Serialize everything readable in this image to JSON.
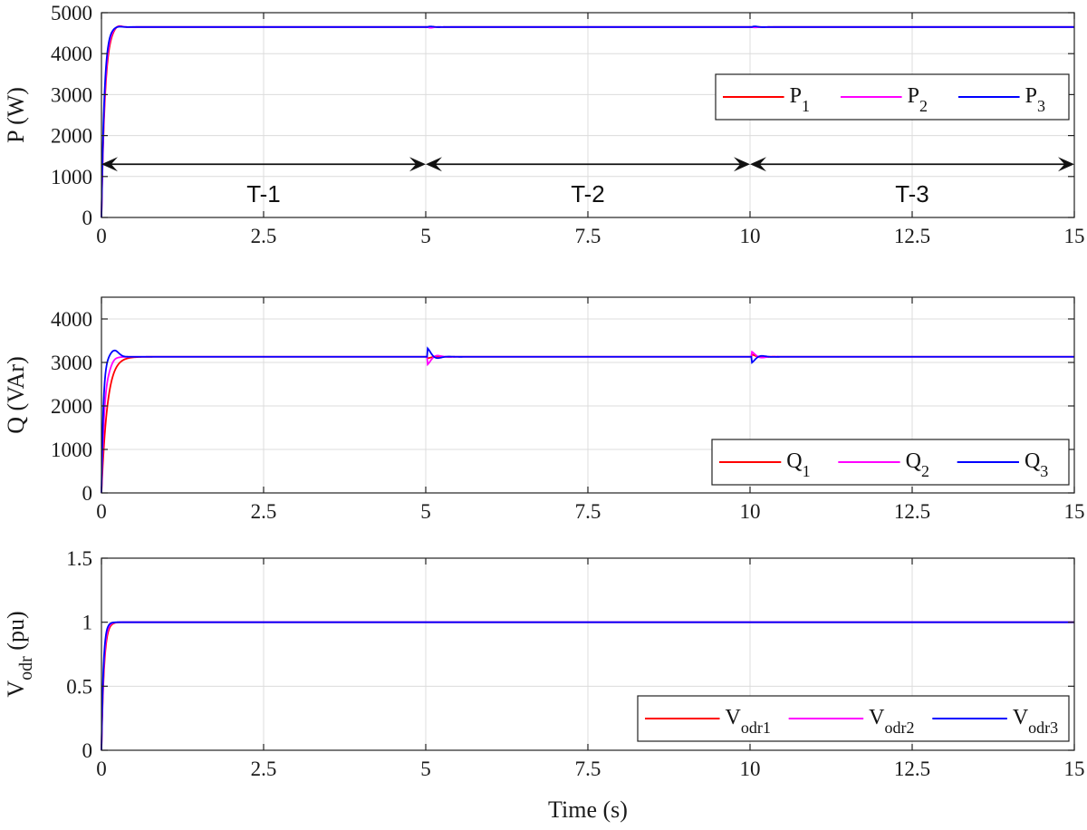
{
  "chart_data": [
    {
      "type": "line",
      "ylabel": "P (W)",
      "ylim": [
        0,
        5000
      ],
      "yticks": [
        "0",
        "1000",
        "2000",
        "3000",
        "4000",
        "5000"
      ],
      "xlim": [
        0,
        15
      ],
      "xticks": [
        "0",
        "2.5",
        "5",
        "7.5",
        "10",
        "12.5",
        "15"
      ],
      "grid": true,
      "legend_position": "top-right",
      "series": [
        {
          "name": "P",
          "sub": "1",
          "color": "#ff0000",
          "steady": 4650
        },
        {
          "name": "P",
          "sub": "2",
          "color": "#ff00ff",
          "steady": 4650
        },
        {
          "name": "P",
          "sub": "3",
          "color": "#0000ff",
          "steady": 4650
        }
      ],
      "annotations": [
        {
          "label": "T-1",
          "from": 0,
          "to": 5,
          "y": 1300
        },
        {
          "label": "T-2",
          "from": 5,
          "to": 10,
          "y": 1300
        },
        {
          "label": "T-3",
          "from": 10,
          "to": 15,
          "y": 1300
        }
      ]
    },
    {
      "type": "line",
      "ylabel": "Q (VAr)",
      "ylim": [
        0,
        4500
      ],
      "yticks": [
        "0",
        "1000",
        "2000",
        "3000",
        "4000"
      ],
      "xlim": [
        0,
        15
      ],
      "xticks": [
        "0",
        "2.5",
        "5",
        "7.5",
        "10",
        "12.5",
        "15"
      ],
      "grid": true,
      "legend_position": "bottom-right",
      "series": [
        {
          "name": "Q",
          "sub": "1",
          "color": "#ff0000",
          "steady": 3130
        },
        {
          "name": "Q",
          "sub": "2",
          "color": "#ff00ff",
          "steady": 3130
        },
        {
          "name": "Q",
          "sub": "3",
          "color": "#0000ff",
          "steady": 3130
        }
      ]
    },
    {
      "type": "line",
      "ylabel": "V",
      "ylabel_sub": "odr",
      "ylabel_unit": "(pu)",
      "ylim": [
        0,
        1.5
      ],
      "yticks": [
        "0",
        "0.5",
        "1",
        "1.5"
      ],
      "xlim": [
        0,
        15
      ],
      "xticks": [
        "0",
        "2.5",
        "5",
        "7.5",
        "10",
        "12.5",
        "15"
      ],
      "xlabel": "Time (s)",
      "grid": true,
      "legend_position": "bottom-right",
      "series": [
        {
          "name": "V",
          "sub": "odr1",
          "color": "#ff0000",
          "steady": 1.0
        },
        {
          "name": "V",
          "sub": "odr2",
          "color": "#ff00ff",
          "steady": 1.0
        },
        {
          "name": "V",
          "sub": "odr3",
          "color": "#0000ff",
          "steady": 1.0
        }
      ]
    }
  ]
}
